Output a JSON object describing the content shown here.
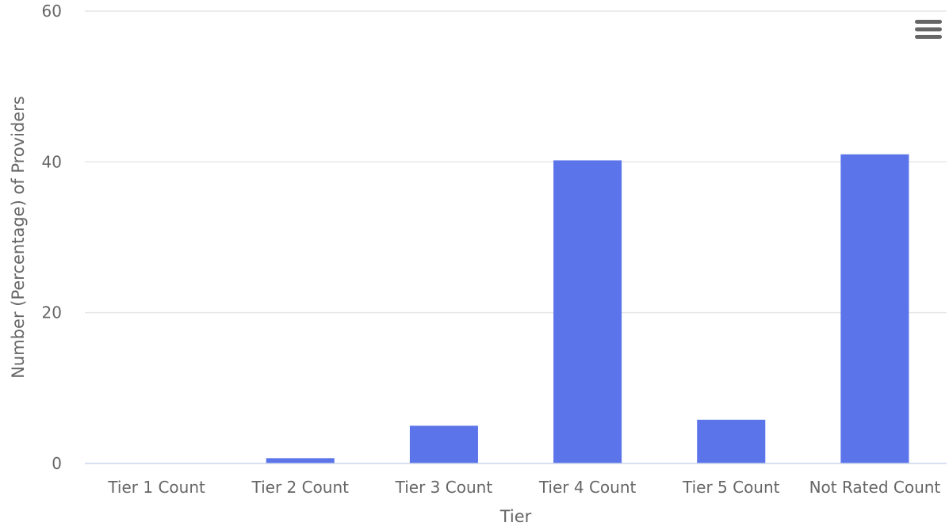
{
  "chart_data": {
    "type": "bar",
    "categories": [
      "Tier 1 Count",
      "Tier 2 Count",
      "Tier 3 Count",
      "Tier 4 Count",
      "Tier 5 Count",
      "Not Rated Count"
    ],
    "values": [
      0,
      0.7,
      5.0,
      40.2,
      5.8,
      41.0
    ],
    "xlabel": "Tier",
    "ylabel": "Number (Percentage) of Providers",
    "ylim": [
      0,
      60
    ],
    "yticks": [
      "0",
      "20",
      "40",
      "60"
    ],
    "grid": true,
    "legend": false,
    "bar_color": "#5b74ea"
  },
  "toolbar": {
    "menu_icon": "hamburger-menu-icon"
  }
}
